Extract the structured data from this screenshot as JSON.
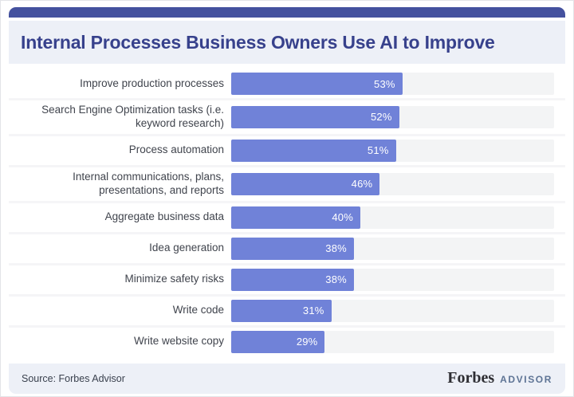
{
  "header": {
    "title": "Internal Processes Business Owners Use AI to Improve"
  },
  "chart_data": {
    "type": "bar",
    "orientation": "horizontal",
    "title": "Internal Processes Business Owners Use AI to Improve",
    "categories": [
      "Improve production processes",
      "Search Engine Optimization tasks (i.e. keyword research)",
      "Process automation",
      "Internal communications, plans, presentations, and reports",
      "Aggregate business data",
      "Idea generation",
      "Minimize safety risks",
      "Write code",
      "Write website copy"
    ],
    "values": [
      53,
      52,
      51,
      46,
      40,
      38,
      38,
      31,
      29
    ],
    "value_suffix": "%",
    "xlim": [
      0,
      100
    ],
    "grid": false,
    "legend": false,
    "data_labels": "inside-bar-right",
    "bar_color": "#7082d8",
    "track_color": "#f3f4f5"
  },
  "footer": {
    "source": "Source: Forbes Advisor",
    "brand": "Forbes",
    "brand_suffix": "ADVISOR"
  },
  "colors": {
    "accent_bar": "#44519e",
    "band_background": "#edf0f7",
    "title_text": "#37418c",
    "label_text": "#40444d",
    "bar_fill": "#7082d8",
    "bar_track": "#f3f4f5",
    "bar_value_text": "#ffffff",
    "brand_forbes": "#2e2e33",
    "brand_advisor": "#5e7495"
  }
}
